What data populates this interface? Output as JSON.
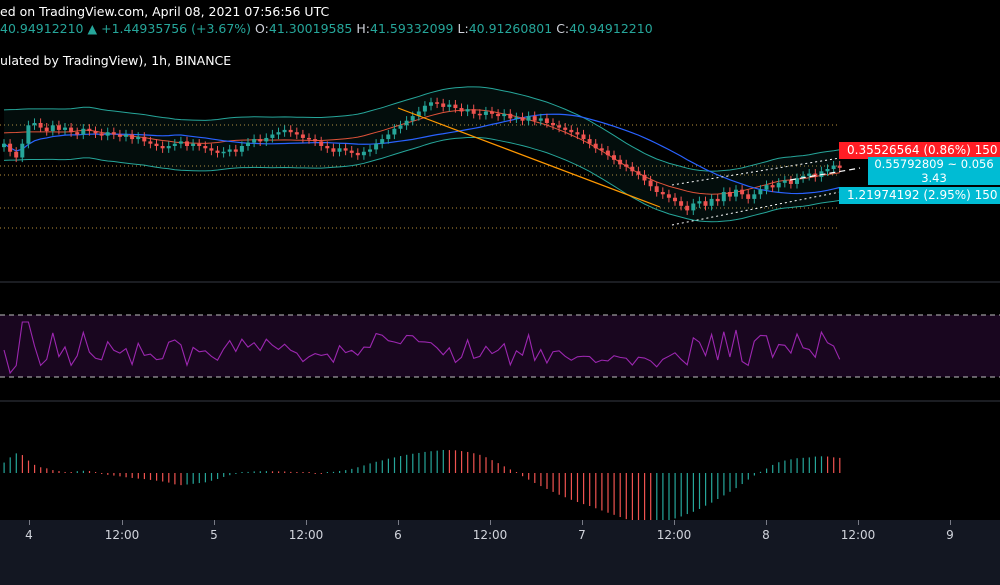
{
  "header": {
    "line1_prefix": "ed on TradingView.com, April 08, 2021 07:56:56 UTC",
    "close_lead": "40.94912210",
    "change": "+1.44935756 (+3.67%)",
    "o_label": "O:",
    "o_value": "41.30019585",
    "h_label": "H:",
    "h_value": "41.59332099",
    "l_label": "L:",
    "l_value": "40.91260801",
    "c_label": "C:",
    "c_value": "40.94912210",
    "symbol_line": "ulated by TradingView), 1h, BINANCE"
  },
  "price_tags": {
    "red": "0.35526564 (0.86%) 150",
    "mid_top": "0.55792809 ~ 0.056",
    "mid_bottom": "3.43",
    "cyan": "1.21974192 (2.95%) 150"
  },
  "colors": {
    "up": "#26a69a",
    "down": "#ef5350",
    "bb": "#26a69a",
    "ma_blue": "#2962ff",
    "ma_red": "#e0533a",
    "rsi": "#9c27b0",
    "trend": "#ff9800",
    "price_red": "#ff1d25",
    "price_cyan": "#00bcd4"
  },
  "x_axis": {
    "labels": [
      "4",
      "12:00",
      "5",
      "12:00",
      "6",
      "12:00",
      "7",
      "12:00",
      "8",
      "12:00",
      "9"
    ]
  },
  "chart_data": {
    "type": "candlestick",
    "panes": [
      "price",
      "rsi",
      "histogram"
    ],
    "timeframe": "1h",
    "exchange": "BINANCE",
    "x_labels": [
      "4",
      "12:00",
      "5",
      "12:00",
      "6",
      "12:00",
      "7",
      "12:00",
      "8",
      "12:00",
      "9"
    ],
    "ohlc_last": {
      "open": 41.30019585,
      "high": 41.59332099,
      "low": 40.91260801,
      "close": 40.9491221
    },
    "candles_close_path": [
      0.62,
      0.55,
      0.5,
      0.62,
      0.78,
      0.8,
      0.76,
      0.73,
      0.78,
      0.74,
      0.76,
      0.72,
      0.7,
      0.75,
      0.73,
      0.71,
      0.69,
      0.72,
      0.7,
      0.68,
      0.7,
      0.66,
      0.68,
      0.64,
      0.62,
      0.6,
      0.58,
      0.6,
      0.62,
      0.64,
      0.6,
      0.62,
      0.6,
      0.58,
      0.56,
      0.54,
      0.55,
      0.57,
      0.55,
      0.6,
      0.63,
      0.66,
      0.64,
      0.67,
      0.7,
      0.72,
      0.74,
      0.72,
      0.7,
      0.67,
      0.66,
      0.64,
      0.6,
      0.58,
      0.55,
      0.58,
      0.56,
      0.54,
      0.52,
      0.55,
      0.57,
      0.62,
      0.66,
      0.7,
      0.75,
      0.78,
      0.82,
      0.86,
      0.9,
      0.95,
      0.98,
      0.97,
      0.94,
      0.96,
      0.93,
      0.9,
      0.92,
      0.88,
      0.87,
      0.9,
      0.88,
      0.86,
      0.88,
      0.84,
      0.85,
      0.82,
      0.86,
      0.82,
      0.84,
      0.8,
      0.78,
      0.76,
      0.74,
      0.72,
      0.7,
      0.66,
      0.62,
      0.58,
      0.56,
      0.52,
      0.48,
      0.44,
      0.42,
      0.38,
      0.35,
      0.3,
      0.25,
      0.2,
      0.18,
      0.15,
      0.12,
      0.08,
      0.04,
      0.1,
      0.12,
      0.08,
      0.14,
      0.12,
      0.2,
      0.16,
      0.22,
      0.18,
      0.14,
      0.18,
      0.22,
      0.26,
      0.24,
      0.28,
      0.3,
      0.27,
      0.32,
      0.34,
      0.36,
      0.33,
      0.38,
      0.4,
      0.43,
      0.41
    ]
  }
}
